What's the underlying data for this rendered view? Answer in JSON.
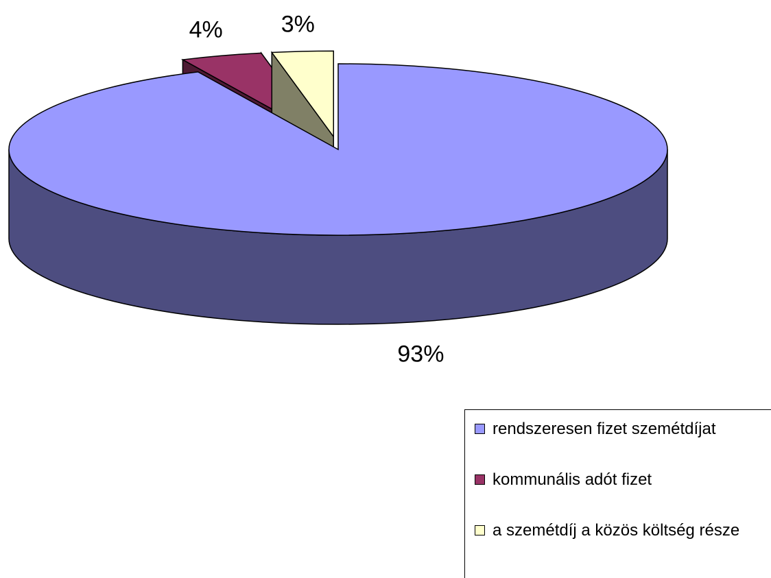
{
  "chart_data": {
    "type": "pie3d",
    "categories": [
      "rendszeresen fizet szemétdíjat",
      "kommunális adót fizet",
      "a szemétdíj a közös költség része"
    ],
    "values": [
      93,
      4,
      3
    ],
    "value_labels": [
      "93%",
      "4%",
      "3%"
    ],
    "colors": [
      "#9999ff",
      "#993366",
      "#ffffcc"
    ],
    "legend": "bottom-right"
  }
}
